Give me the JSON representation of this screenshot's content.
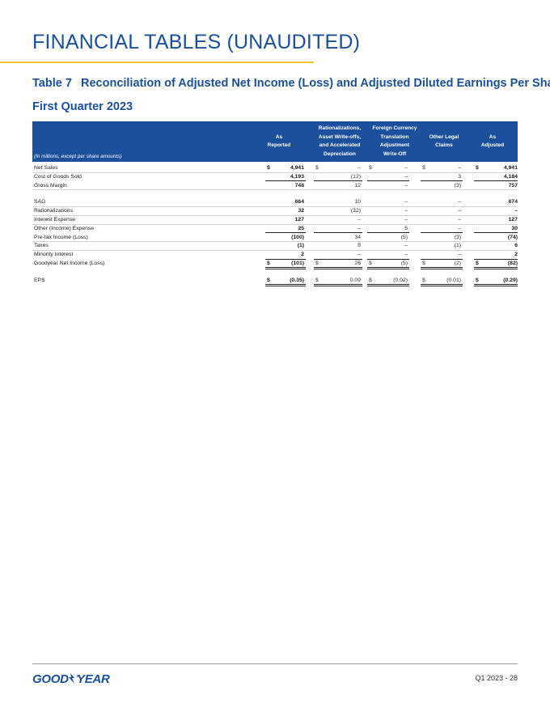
{
  "page": {
    "title": "FINANCIAL TABLES (UNAUDITED)",
    "table_number": "Table 7",
    "table_title": "Reconciliation of Adjusted Net Income (Loss) and Adjusted Diluted Earnings Per Share",
    "subtitle": "First Quarter 2023"
  },
  "table": {
    "units_note": "(In millions, except per share amounts)",
    "columns": [
      "As\nReported",
      "Rationalizations,\nAsset Write-offs,\nand Accelerated\nDepreciation",
      "Foreign Currency\nTranslation\nAdjustment\nWrite-Off",
      "Other Legal\nClaims",
      "As\nAdjusted"
    ],
    "rows": [
      {
        "label": "Net Sales",
        "values": [
          "4,941",
          "–",
          "–",
          "–",
          "4,941"
        ],
        "dollar": true
      },
      {
        "label": "Cost of Goods Sold",
        "values": [
          "4,193",
          "(12)",
          "–",
          "3",
          "4,184"
        ],
        "rule_after": true
      },
      {
        "label": "Gross Margin",
        "values": [
          "748",
          "12",
          "–",
          "(3)",
          "757"
        ],
        "gap_after": true
      },
      {
        "label": "SAG",
        "values": [
          "664",
          "10",
          "–",
          "–",
          "674"
        ]
      },
      {
        "label": "Rationalizations",
        "values": [
          "32",
          "(32)",
          "–",
          "–",
          "–"
        ]
      },
      {
        "label": "Interest Expense",
        "values": [
          "127",
          "–",
          "–",
          "–",
          "127"
        ]
      },
      {
        "label": "Other (Income) Expense",
        "values": [
          "25",
          "–",
          "5",
          "–",
          "30"
        ],
        "rule_after": true
      },
      {
        "label": "Pre-tax Income (Loss)",
        "values": [
          "(100)",
          "34",
          "(5)",
          "(3)",
          "(74)"
        ]
      },
      {
        "label": "Taxes",
        "values": [
          "(1)",
          "8",
          "–",
          "(1)",
          "6"
        ]
      },
      {
        "label": "Minority Interest",
        "values": [
          "2",
          "–",
          "–",
          "–",
          "2"
        ],
        "rule_after": true
      },
      {
        "label": "Goodyear Net Income (Loss)",
        "values": [
          "(101)",
          "26",
          "(5)",
          "(2)",
          "(82)"
        ],
        "dollar": true,
        "double_after": true,
        "gap_after": true
      },
      {
        "label": "EPS",
        "values": [
          "(0.35)",
          "0.09",
          "(0.02)",
          "(0.01)",
          "(0.29)"
        ],
        "dollar": true,
        "double_after": true
      }
    ]
  },
  "footer": {
    "logo_text": "GOODYEAR",
    "page_number": "Q1 2023 - 28"
  },
  "colors": {
    "brand_blue": "#1c4f9c",
    "accent_yellow": "#f2c230"
  }
}
